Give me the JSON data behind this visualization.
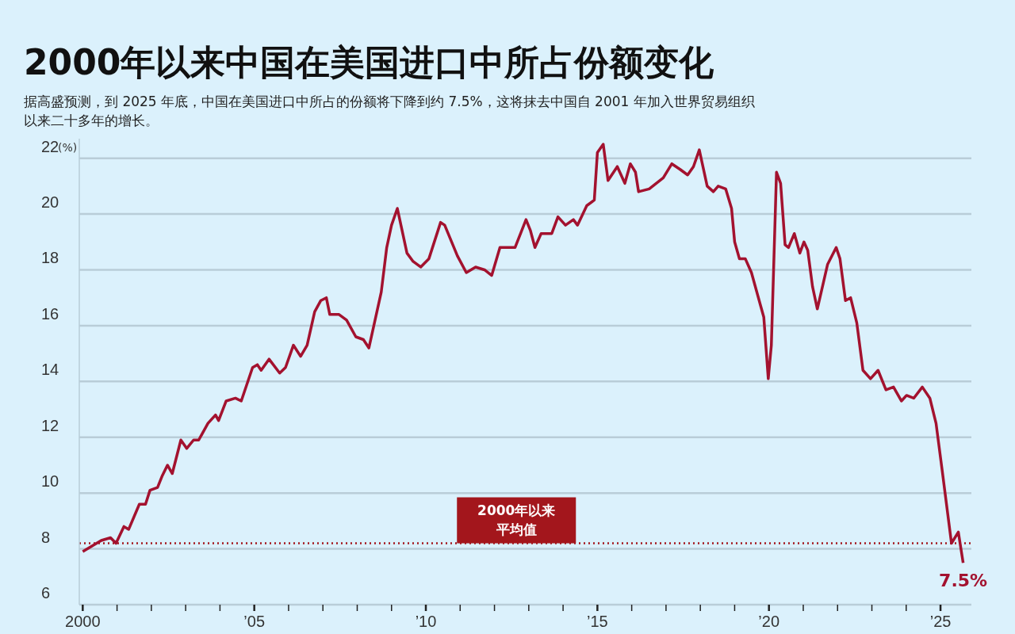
{
  "chart_data": {
    "type": "line",
    "title": "2000年以来中国在美国进口中所占份额变化",
    "subtitle": "据高盛预测，到 2025 年底，中国在美国进口中所占的份额将下降到约 7.5%，这将抹去中国自 2001 年加入世界贸易组织以来二十多年的增长。",
    "ylabel": "(%)",
    "x": [
      2000.0,
      2000.54,
      2000.81,
      2000.97,
      2001.2,
      2001.34,
      2001.65,
      2001.83,
      2001.96,
      2002.18,
      2002.31,
      2002.47,
      2002.61,
      2002.86,
      2003.03,
      2003.23,
      2003.38,
      2003.65,
      2003.87,
      2003.96,
      2004.18,
      2004.45,
      2004.62,
      2004.95,
      2005.09,
      2005.2,
      2005.43,
      2005.74,
      2005.91,
      2006.14,
      2006.35,
      2006.54,
      2006.76,
      2006.94,
      2007.1,
      2007.2,
      2007.47,
      2007.69,
      2007.96,
      2008.18,
      2008.34,
      2008.7,
      2008.86,
      2009.0,
      2009.17,
      2009.45,
      2009.63,
      2009.85,
      2010.09,
      2010.43,
      2010.55,
      2010.92,
      2011.18,
      2011.45,
      2011.71,
      2011.92,
      2012.16,
      2012.6,
      2012.92,
      2013.05,
      2013.18,
      2013.36,
      2013.67,
      2013.85,
      2014.07,
      2014.3,
      2014.42,
      2014.69,
      2014.91,
      2015.0,
      2015.17,
      2015.31,
      2015.58,
      2015.8,
      2015.96,
      2016.11,
      2016.2,
      2016.51,
      2016.92,
      2017.17,
      2017.41,
      2017.63,
      2017.8,
      2017.97,
      2018.2,
      2018.38,
      2018.52,
      2018.74,
      2018.91,
      2019.0,
      2019.14,
      2019.31,
      2019.49,
      2019.76,
      2019.85,
      2019.98,
      2020.07,
      2020.22,
      2020.34,
      2020.47,
      2020.57,
      2020.74,
      2020.9,
      2021.02,
      2021.13,
      2021.27,
      2021.41,
      2021.71,
      2021.96,
      2022.07,
      2022.23,
      2022.38,
      2022.56,
      2022.74,
      2022.96,
      2023.18,
      2023.41,
      2023.63,
      2023.86,
      2024.01,
      2024.22,
      2024.47,
      2024.69,
      2024.87,
      2025.05,
      2025.32,
      2025.52,
      2025.66
    ],
    "values": [
      7.9,
      8.3,
      8.4,
      8.2,
      8.8,
      8.7,
      9.6,
      9.6,
      10.1,
      10.2,
      10.6,
      11.0,
      10.7,
      11.9,
      11.6,
      11.9,
      11.9,
      12.5,
      12.8,
      12.6,
      13.3,
      13.4,
      13.3,
      14.5,
      14.6,
      14.4,
      14.8,
      14.3,
      14.5,
      15.3,
      14.9,
      15.3,
      16.5,
      16.9,
      17.0,
      16.4,
      16.4,
      16.2,
      15.6,
      15.5,
      15.2,
      17.2,
      18.8,
      19.6,
      20.2,
      18.6,
      18.3,
      18.1,
      18.4,
      19.7,
      19.6,
      18.5,
      17.9,
      18.1,
      18.0,
      17.8,
      18.8,
      18.8,
      19.8,
      19.4,
      18.8,
      19.3,
      19.3,
      19.9,
      19.6,
      19.8,
      19.6,
      20.3,
      20.5,
      22.2,
      22.5,
      21.2,
      21.7,
      21.1,
      21.8,
      21.5,
      20.8,
      20.9,
      21.3,
      21.8,
      21.6,
      21.4,
      21.7,
      22.3,
      21.0,
      20.8,
      21.0,
      20.9,
      20.2,
      19.0,
      18.4,
      18.4,
      17.9,
      16.7,
      16.3,
      14.1,
      15.3,
      21.5,
      21.1,
      18.9,
      18.8,
      19.3,
      18.6,
      19.0,
      18.7,
      17.4,
      16.6,
      18.2,
      18.8,
      18.4,
      16.9,
      17.0,
      16.1,
      14.4,
      14.1,
      14.4,
      13.7,
      13.8,
      13.3,
      13.5,
      13.4,
      13.8,
      13.4,
      12.5,
      10.8,
      8.2,
      8.6,
      7.5
    ],
    "color": "#a3122f",
    "line_style": "solid",
    "marker": "none",
    "grid": "y",
    "xlim": [
      1999.9,
      2025.9
    ],
    "xticks": [
      {
        "value": 2000,
        "label": "2000"
      },
      {
        "value": 2001,
        "label": null
      },
      {
        "value": 2002,
        "label": null
      },
      {
        "value": 2003,
        "label": null
      },
      {
        "value": 2004,
        "label": null
      },
      {
        "value": 2005,
        "label": "’05"
      },
      {
        "value": 2006,
        "label": null
      },
      {
        "value": 2007,
        "label": null
      },
      {
        "value": 2008,
        "label": null
      },
      {
        "value": 2009,
        "label": null
      },
      {
        "value": 2010,
        "label": "’10"
      },
      {
        "value": 2011,
        "label": null
      },
      {
        "value": 2012,
        "label": null
      },
      {
        "value": 2013,
        "label": null
      },
      {
        "value": 2014,
        "label": null
      },
      {
        "value": 2015,
        "label": "’15"
      },
      {
        "value": 2016,
        "label": null
      },
      {
        "value": 2017,
        "label": null
      },
      {
        "value": 2018,
        "label": null
      },
      {
        "value": 2019,
        "label": null
      },
      {
        "value": 2020,
        "label": "’20"
      },
      {
        "value": 2021,
        "label": null
      },
      {
        "value": 2022,
        "label": null
      },
      {
        "value": 2023,
        "label": null
      },
      {
        "value": 2024,
        "label": null
      },
      {
        "value": 2025,
        "label": "’25"
      }
    ],
    "ylim": [
      6,
      22.7
    ],
    "yticks": [
      6,
      8,
      10,
      12,
      14,
      16,
      18,
      20,
      22
    ],
    "ref_lines": [
      {
        "axis": "y",
        "value": 8.2,
        "label": "2000年以来平均值",
        "color": "#a3161c",
        "line_style": "dotted"
      }
    ],
    "annotations": [
      {
        "text": "7.5%",
        "x": 2025.66,
        "y": 7.5
      }
    ],
    "legend": false
  }
}
